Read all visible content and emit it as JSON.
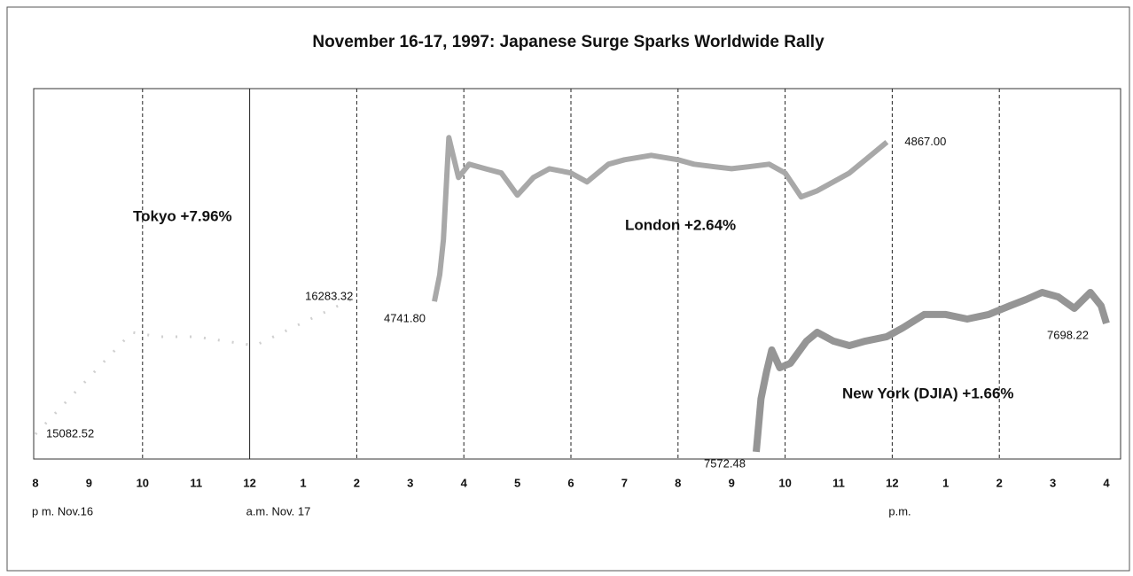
{
  "chart_data": {
    "type": "line",
    "title": "November 16-17, 1997:  Japanese Surge Sparks Worldwide Rally",
    "xlim": [
      0,
      20
    ],
    "xticks": [
      {
        "value": 0,
        "label": "8"
      },
      {
        "value": 1,
        "label": "9"
      },
      {
        "value": 2,
        "label": "10"
      },
      {
        "value": 3,
        "label": "11"
      },
      {
        "value": 4,
        "label": "12"
      },
      {
        "value": 5,
        "label": "1"
      },
      {
        "value": 6,
        "label": "2"
      },
      {
        "value": 7,
        "label": "3"
      },
      {
        "value": 8,
        "label": "4"
      },
      {
        "value": 9,
        "label": "5"
      },
      {
        "value": 10,
        "label": "6"
      },
      {
        "value": 11,
        "label": "7"
      },
      {
        "value": 12,
        "label": "8"
      },
      {
        "value": 13,
        "label": "9"
      },
      {
        "value": 14,
        "label": "10"
      },
      {
        "value": 15,
        "label": "11"
      },
      {
        "value": 16,
        "label": "12"
      },
      {
        "value": 17,
        "label": "1"
      },
      {
        "value": 18,
        "label": "2"
      },
      {
        "value": 19,
        "label": "3"
      },
      {
        "value": 20,
        "label": "4"
      }
    ],
    "x_sublabels": [
      {
        "value": 0,
        "label": "p m. Nov.16"
      },
      {
        "value": 4,
        "label": "a.m. Nov. 17"
      },
      {
        "value": 16,
        "label": "p.m."
      }
    ],
    "xgrid": [
      2,
      6,
      8,
      10,
      12,
      14,
      16,
      18
    ],
    "solid_grid": 4,
    "series": [
      {
        "name": "Tokyo +7.96%",
        "color": "#d0d0d0",
        "ylim": [
          14866,
          18104
        ],
        "x": [
          0,
          1.8,
          2.3,
          3.0,
          4.1,
          6
        ],
        "values": [
          15082.52,
          15973.4,
          15934.7,
          15934.7,
          15857.2,
          16283.32
        ],
        "value_labels": [
          "15082.52",
          null,
          null,
          null,
          null,
          "16283.32"
        ]
      },
      {
        "name": "London +2.64%",
        "color": "#a8a8a8",
        "ylim": [
          4618,
          4909
        ],
        "x": [
          7.45,
          7.55,
          7.62,
          7.68,
          7.72,
          7.8,
          7.9,
          8.1,
          8.4,
          8.7,
          9.0,
          9.3,
          9.6,
          10.0,
          10.3,
          10.7,
          11.0,
          11.5,
          12.0,
          12.3,
          12.7,
          13.0,
          13.3,
          13.7,
          14.0,
          14.3,
          14.6,
          14.9,
          15.2,
          15.5,
          15.9
        ],
        "values": [
          4741.8,
          4762.7,
          4790.5,
          4839.2,
          4870.5,
          4856.6,
          4839.2,
          4849.6,
          4846.1,
          4842.7,
          4825.3,
          4839.2,
          4846.1,
          4842.7,
          4835.7,
          4849.6,
          4853.1,
          4856.6,
          4853.1,
          4849.6,
          4847.5,
          4846.1,
          4847.5,
          4849.6,
          4842.7,
          4823.9,
          4828.7,
          4835.7,
          4842.7,
          4853.1,
          4867.0
        ],
        "value_labels": [
          "4741.80",
          null,
          null,
          null,
          null,
          null,
          null,
          null,
          null,
          null,
          null,
          null,
          null,
          null,
          null,
          null,
          null,
          null,
          null,
          null,
          null,
          null,
          null,
          null,
          null,
          null,
          null,
          null,
          null,
          null,
          "4867.00"
        ]
      },
      {
        "name": "New York (DJIA)  +1.66%",
        "color": "#959595",
        "ylim": [
          7565.5,
          7927.9
        ],
        "x": [
          13.46,
          13.55,
          13.65,
          13.75,
          13.9,
          14.1,
          14.4,
          14.6,
          14.9,
          15.2,
          15.5,
          15.9,
          16.2,
          16.6,
          17.0,
          17.4,
          17.8,
          18.2,
          18.5,
          18.8,
          19.1,
          19.4,
          19.7,
          19.9,
          20
        ],
        "values": [
          7572.48,
          7624.5,
          7650.5,
          7672.2,
          7654.8,
          7659.2,
          7680.9,
          7689.5,
          7680.9,
          7676.5,
          7680.9,
          7685.2,
          7693.9,
          7706.9,
          7706.9,
          7702.5,
          7706.9,
          7715.5,
          7721.6,
          7728.5,
          7724.2,
          7712.9,
          7728.5,
          7715.5,
          7698.22
        ],
        "value_labels": [
          "7572.48",
          null,
          null,
          null,
          null,
          null,
          null,
          null,
          null,
          null,
          null,
          null,
          null,
          null,
          null,
          null,
          null,
          null,
          null,
          null,
          null,
          null,
          null,
          null,
          "7698.22"
        ]
      }
    ]
  }
}
